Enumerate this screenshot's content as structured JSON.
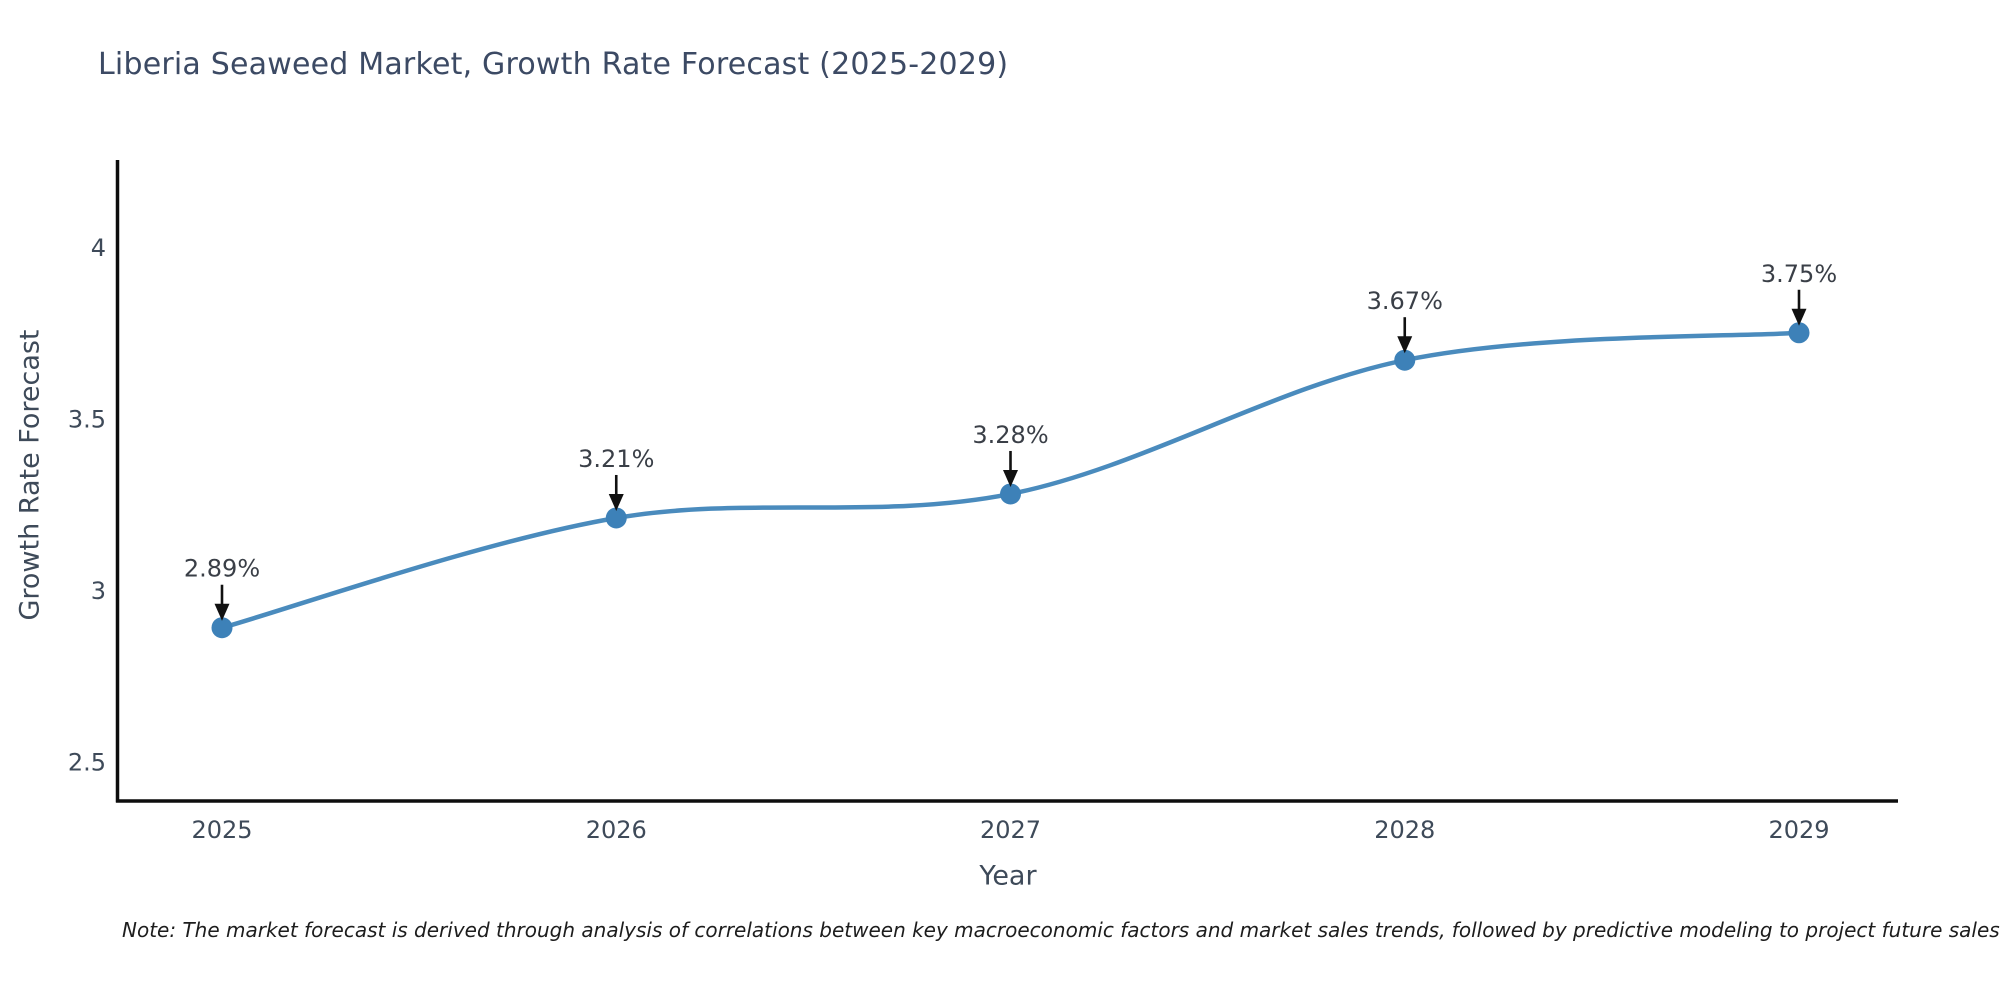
{
  "note": "Note: The market forecast is derived through analysis of correlations between key macroeconomic factors and market sales trends, followed by predictive modeling to project future sales",
  "colors": {
    "line": "#4a8bbd",
    "marker": "#3d81b8",
    "axis": "#0d0d0d",
    "arrow": "#111111",
    "title_text": "#3c4a64",
    "tick_text": "#3e4a59",
    "axis_title_text": "#3e4a59",
    "annotation_text": "#3a3f47",
    "note_text": "#1d1d1d"
  },
  "chart_data": {
    "type": "line",
    "title": "Liberia Seaweed Market, Growth Rate Forecast (2025-2029)",
    "xlabel": "Year",
    "ylabel": "Growth Rate Forecast",
    "x": [
      2025,
      2026,
      2027,
      2028,
      2029
    ],
    "values": [
      2.89,
      3.21,
      3.28,
      3.67,
      3.75
    ],
    "point_labels": [
      "2.89%",
      "3.21%",
      "3.28%",
      "3.67%",
      "3.75%"
    ],
    "y_ticks": [
      2.5,
      3,
      3.5,
      4
    ],
    "ylim": [
      2.39,
      4.25
    ],
    "grid": false,
    "legend": "none",
    "line_shape": "spline",
    "markers": true
  }
}
